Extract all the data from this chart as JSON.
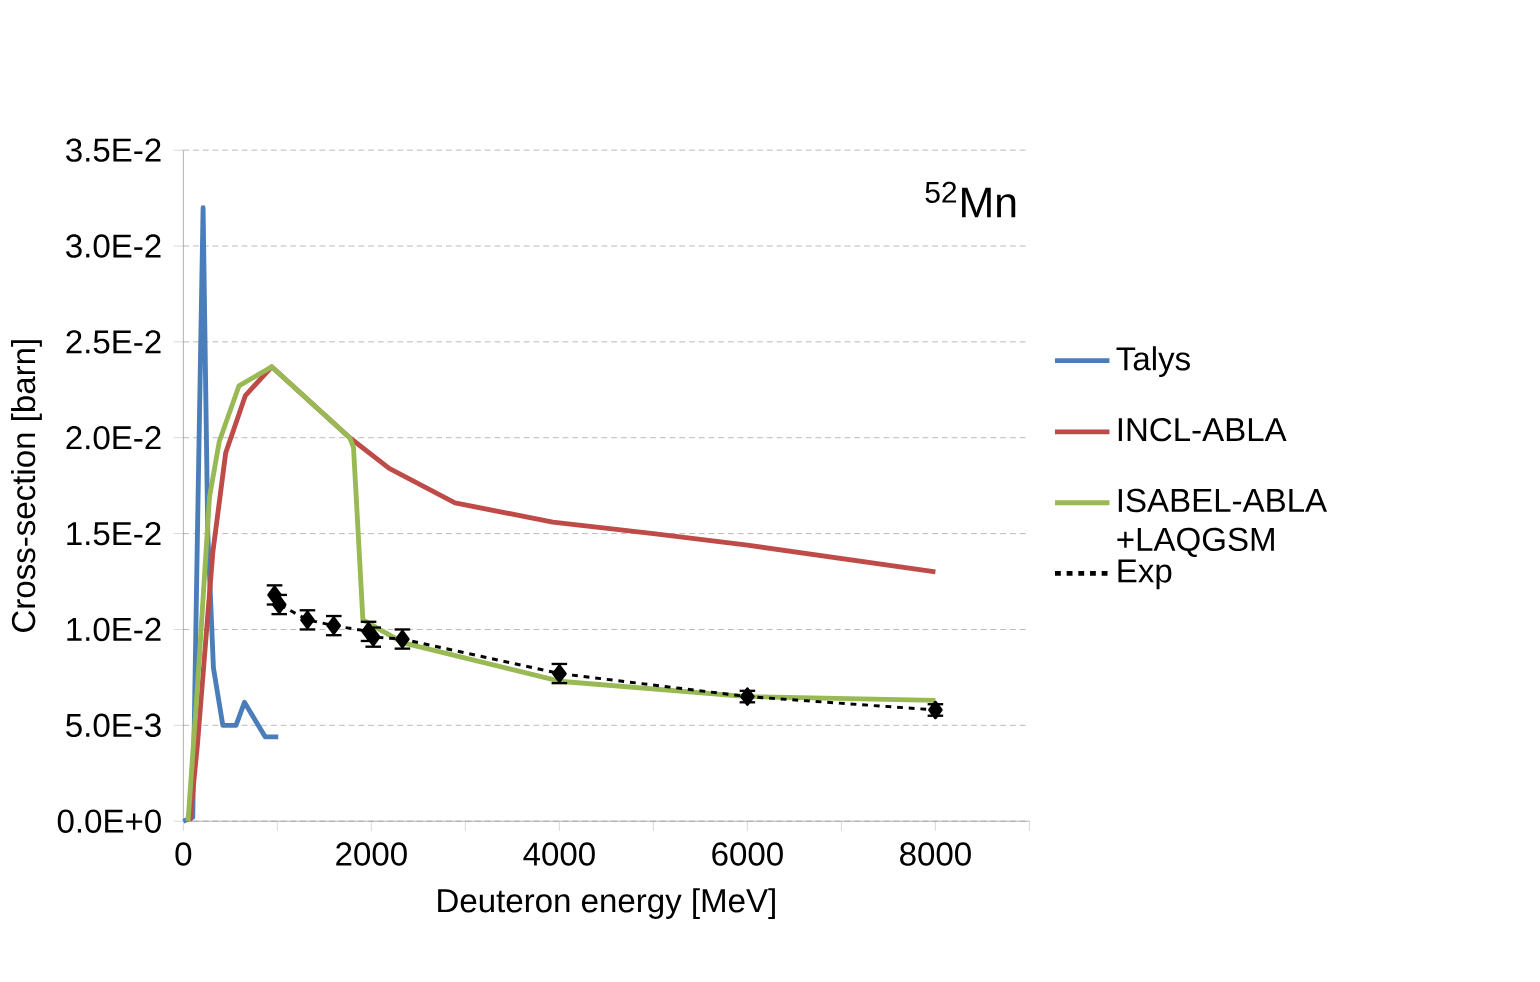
{
  "chart_data": {
    "type": "line",
    "xlabel": "Deuteron energy [MeV]",
    "ylabel": "Cross-section [barn]",
    "annotations": [
      "$^{52}$Mn"
    ],
    "xlim": [
      0,
      9000
    ],
    "ylim": [
      0,
      0.035
    ],
    "xticks": [
      0,
      {
        "value": 1000,
        "label": null
      },
      2000,
      {
        "value": 3000,
        "label": null
      },
      4000,
      {
        "value": 5000,
        "label": null
      },
      6000,
      {
        "value": 7000,
        "label": null
      },
      8000,
      {
        "value": 9000,
        "label": null
      }
    ],
    "yticks": [
      {
        "value": 0,
        "label": "0.0E+0"
      },
      {
        "value": 0.005,
        "label": "5.0E-3"
      },
      {
        "value": 0.01,
        "label": "1.0E-2"
      },
      {
        "value": 0.015,
        "label": "1.5E-2"
      },
      {
        "value": 0.02,
        "label": "2.0E-2"
      },
      {
        "value": 0.025,
        "label": "2.5E-2"
      },
      {
        "value": 0.03,
        "label": "3.0E-2"
      },
      {
        "value": 0.035,
        "label": "3.5E-2"
      }
    ],
    "grid": "y",
    "legend": "right",
    "series": [
      {
        "name": "Talys",
        "color": "#4a7ebb",
        "marker": "none",
        "line_style": "solid",
        "x": [
          0,
          100,
          150,
          210,
          260,
          320,
          420,
          560,
          650,
          870,
          1010
        ],
        "values": [
          0,
          0.0002,
          0.015,
          0.032,
          0.015,
          0.008,
          0.005,
          0.005,
          0.0062,
          0.0044,
          0.0044
        ]
      },
      {
        "name": "INCL-ABLA",
        "color": "#be4b48",
        "marker": "none",
        "line_style": "solid",
        "x": [
          70,
          150,
          313,
          450,
          660,
          940,
          1770,
          2190,
          2890,
          3930,
          5000,
          6000,
          8000
        ],
        "values": [
          0,
          0.004,
          0.014,
          0.0192,
          0.0222,
          0.0237,
          0.02,
          0.0184,
          0.0166,
          0.0156,
          0.015,
          0.0144,
          0.013
        ]
      },
      {
        "name": "ISABEL-ABLA +LAQGSM",
        "color": "#98b954",
        "marker": "none",
        "line_style": "solid",
        "x": [
          50,
          150,
          278,
          382,
          591,
          940,
          1770,
          1810,
          1910,
          2340,
          4000,
          6000,
          8000
        ],
        "values": [
          0,
          0.007,
          0.0169,
          0.0198,
          0.0227,
          0.0237,
          0.02,
          0.0195,
          0.0105,
          0.0093,
          0.0073,
          0.0065,
          0.0063
        ]
      },
      {
        "name": "Exp",
        "color": "#000000",
        "marker": "diamond",
        "line_style": "dashed",
        "x": [
          970,
          1020,
          1320,
          1600,
          1970,
          2020,
          2330,
          4000,
          6000,
          8000
        ],
        "values": [
          0.0118,
          0.0113,
          0.0105,
          0.0102,
          0.0099,
          0.0096,
          0.0095,
          0.0077,
          0.0065,
          0.0058
        ],
        "errors": [
          0.0005,
          0.0005,
          0.0005,
          0.0005,
          0.0005,
          0.0005,
          0.0005,
          0.0005,
          0.0003,
          0.0003
        ]
      }
    ]
  }
}
